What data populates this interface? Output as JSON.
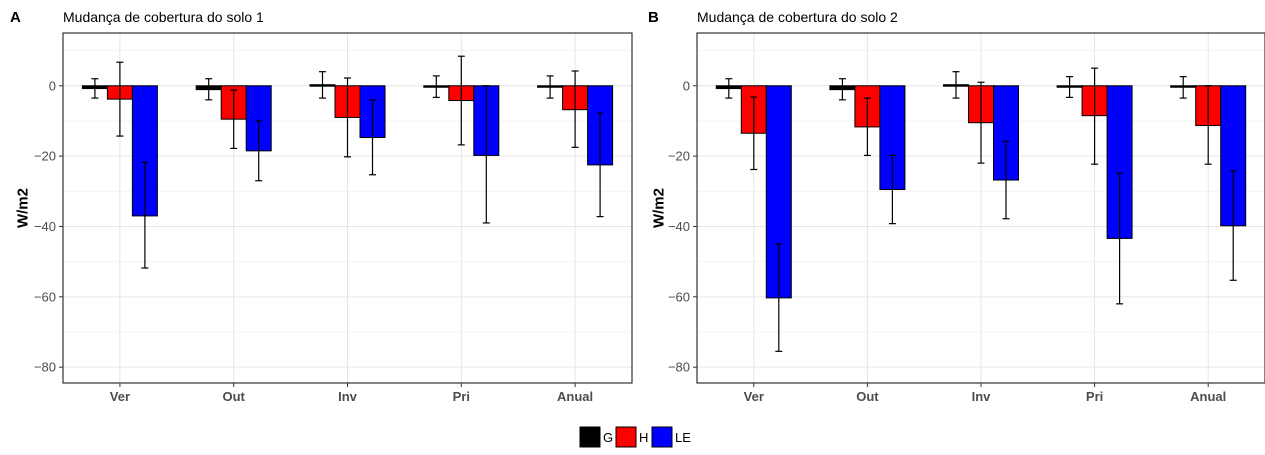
{
  "chart_data": [
    {
      "type": "bar",
      "tag": "A",
      "title": "Mudança de cobertura do solo 1",
      "ylabel": "W/m2",
      "xlabel": "",
      "categories": [
        "Ver",
        "Out",
        "Inv",
        "Pri",
        "Anual"
      ],
      "ylim": [
        -84.5,
        15
      ],
      "yticks": [
        0,
        -20,
        -40,
        -60,
        -80
      ],
      "ytick_labels": [
        "0",
        "−20",
        "−40",
        "−60",
        "−80"
      ],
      "grid": true,
      "series": [
        {
          "name": "G",
          "values": [
            -0.8,
            -1.1,
            0.3,
            0.0,
            -0.3
          ],
          "err_low": [
            -3.5,
            -4.0,
            -3.5,
            -3.3,
            -3.5
          ],
          "err_high": [
            2.0,
            2.0,
            4.0,
            2.8,
            2.8
          ]
        },
        {
          "name": "H",
          "values": [
            -3.8,
            -9.5,
            -9.0,
            -4.2,
            -6.8
          ],
          "err_low": [
            -14.3,
            -17.8,
            -20.2,
            -16.8,
            -17.5
          ],
          "err_high": [
            6.7,
            -1.2,
            2.2,
            8.4,
            4.2
          ]
        },
        {
          "name": "LE",
          "values": [
            -37.0,
            -18.5,
            -14.7,
            -19.8,
            -22.5
          ],
          "err_low": [
            -51.8,
            -27.0,
            -25.3,
            -39.0,
            -37.2
          ],
          "err_high": [
            -21.8,
            -10.0,
            -4.0,
            0.0,
            -7.8
          ]
        }
      ]
    },
    {
      "type": "bar",
      "tag": "B",
      "title": "Mudança de cobertura do solo 2",
      "ylabel": "W/m2",
      "xlabel": "",
      "categories": [
        "Ver",
        "Out",
        "Inv",
        "Pri",
        "Anual"
      ],
      "ylim": [
        -84.5,
        15
      ],
      "yticks": [
        0,
        -20,
        -40,
        -60,
        -80
      ],
      "ytick_labels": [
        "0",
        "−20",
        "−40",
        "−60",
        "−80"
      ],
      "grid": true,
      "series": [
        {
          "name": "G",
          "values": [
            -0.8,
            -1.1,
            0.3,
            0.0,
            -0.3
          ],
          "err_low": [
            -3.5,
            -4.0,
            -3.5,
            -3.3,
            -3.5
          ],
          "err_high": [
            2.0,
            2.0,
            4.0,
            2.6,
            2.6
          ]
        },
        {
          "name": "H",
          "values": [
            -13.5,
            -11.7,
            -10.5,
            -8.5,
            -11.3
          ],
          "err_low": [
            -23.8,
            -19.8,
            -22.0,
            -22.3,
            -22.3
          ],
          "err_high": [
            -3.2,
            -3.5,
            1.0,
            5.0,
            0.0
          ]
        },
        {
          "name": "LE",
          "values": [
            -60.3,
            -29.5,
            -26.8,
            -43.4,
            -39.8
          ],
          "err_low": [
            -75.5,
            -39.2,
            -37.8,
            -62.0,
            -55.3
          ],
          "err_high": [
            -45.0,
            -19.8,
            -15.8,
            -24.8,
            -24.2
          ]
        }
      ]
    }
  ],
  "legend": {
    "items": [
      {
        "label": "G",
        "color": "#000000"
      },
      {
        "label": "H",
        "color": "#ff0000"
      },
      {
        "label": "LE",
        "color": "#0000ff"
      }
    ],
    "placement": "bottom"
  },
  "colors": {
    "G": "#000000",
    "H": "#ff0000",
    "LE": "#0000ff",
    "grid": "#ebebeb",
    "panel_border": "#333333"
  }
}
